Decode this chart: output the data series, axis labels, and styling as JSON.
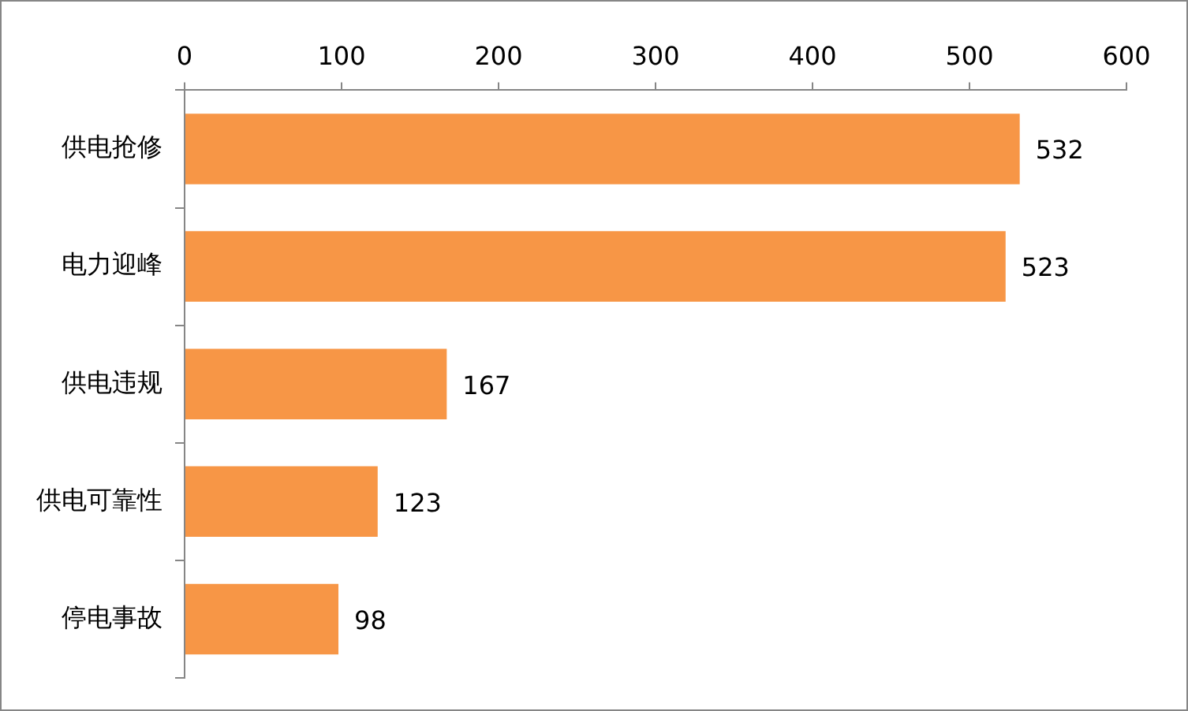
{
  "chart_data": {
    "type": "bar",
    "orientation": "horizontal",
    "categories": [
      "供电抢修",
      "电力迎峰",
      "供电违规",
      "供电可靠性",
      "停电事故"
    ],
    "values": [
      532,
      523,
      167,
      123,
      98
    ],
    "color": "#f79646",
    "xlim": [
      0,
      600
    ],
    "xticks": [
      0,
      100,
      200,
      300,
      400,
      500,
      600
    ],
    "grid": false,
    "legend": false,
    "data_labels": true
  }
}
